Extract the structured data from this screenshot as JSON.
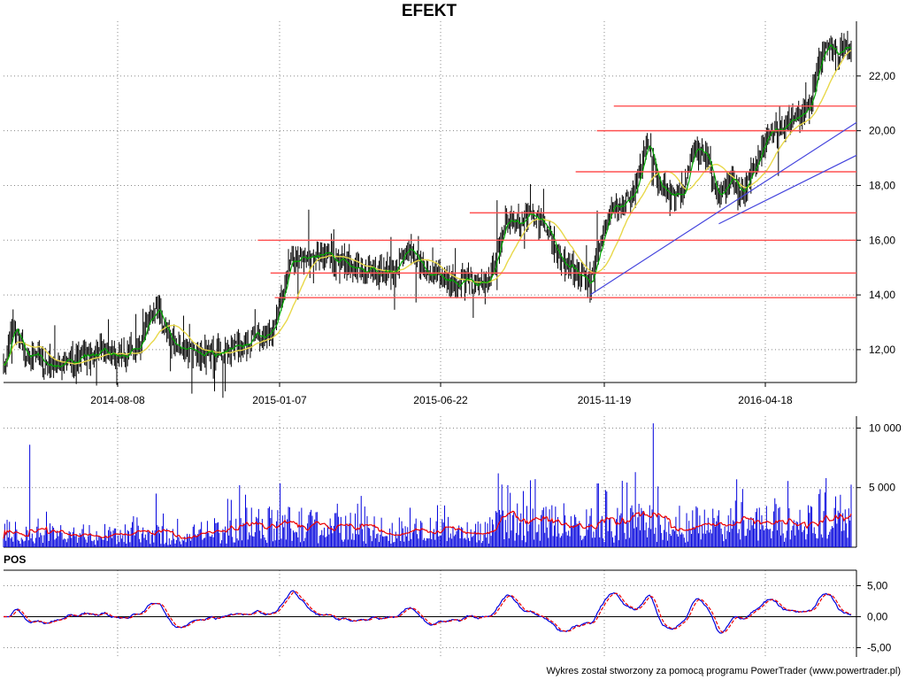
{
  "title": "EFEKT",
  "footer": "Wykres został stworzony za pomocą programu PowerTrader (www.powertrader.pl)",
  "colors": {
    "candle": "#000000",
    "ma_short": "#00aa00",
    "ma_long": "#e8d84a",
    "hline": "#ff5050",
    "trendline": "#4444dd",
    "volume": "#0000dd",
    "volume_ma": "#ee0000",
    "pos_line": "#0000dd",
    "pos_signal": "#ee0000",
    "grid": "#888888"
  },
  "chart_data": [
    {
      "type": "candlestick",
      "name": "price",
      "title": "EFEKT",
      "x_tick_labels": [
        "2014-08-08",
        "2015-01-07",
        "2015-06-22",
        "2015-11-19",
        "2016-04-18"
      ],
      "y_tick_labels": [
        "12,00",
        "14,00",
        "16,00",
        "18,00",
        "20,00",
        "22,00"
      ],
      "ylim": [
        10.8,
        24.0
      ],
      "grid": true,
      "anchors": [
        {
          "i": 0,
          "v": 11.2
        },
        {
          "i": 8,
          "v": 12.9
        },
        {
          "i": 20,
          "v": 11.8
        },
        {
          "i": 40,
          "v": 11.4
        },
        {
          "i": 60,
          "v": 11.6
        },
        {
          "i": 80,
          "v": 11.9
        },
        {
          "i": 100,
          "v": 11.7
        },
        {
          "i": 115,
          "v": 12.3
        },
        {
          "i": 128,
          "v": 13.6
        },
        {
          "i": 138,
          "v": 12.4
        },
        {
          "i": 150,
          "v": 12.0
        },
        {
          "i": 170,
          "v": 11.8
        },
        {
          "i": 190,
          "v": 12.0
        },
        {
          "i": 210,
          "v": 12.5
        },
        {
          "i": 225,
          "v": 12.7
        },
        {
          "i": 232,
          "v": 13.8
        },
        {
          "i": 240,
          "v": 15.2
        },
        {
          "i": 255,
          "v": 15.4
        },
        {
          "i": 270,
          "v": 15.5
        },
        {
          "i": 285,
          "v": 15.2
        },
        {
          "i": 300,
          "v": 14.9
        },
        {
          "i": 325,
          "v": 14.8
        },
        {
          "i": 340,
          "v": 15.7
        },
        {
          "i": 355,
          "v": 14.9
        },
        {
          "i": 370,
          "v": 14.6
        },
        {
          "i": 385,
          "v": 14.5
        },
        {
          "i": 400,
          "v": 14.4
        },
        {
          "i": 410,
          "v": 15.0
        },
        {
          "i": 420,
          "v": 16.7
        },
        {
          "i": 430,
          "v": 16.6
        },
        {
          "i": 440,
          "v": 16.9
        },
        {
          "i": 455,
          "v": 16.6
        },
        {
          "i": 465,
          "v": 15.4
        },
        {
          "i": 480,
          "v": 14.8
        },
        {
          "i": 492,
          "v": 14.3
        },
        {
          "i": 500,
          "v": 15.8
        },
        {
          "i": 510,
          "v": 17.2
        },
        {
          "i": 520,
          "v": 17.3
        },
        {
          "i": 530,
          "v": 17.9
        },
        {
          "i": 540,
          "v": 19.6
        },
        {
          "i": 548,
          "v": 18.3
        },
        {
          "i": 560,
          "v": 17.5
        },
        {
          "i": 570,
          "v": 17.6
        },
        {
          "i": 580,
          "v": 19.6
        },
        {
          "i": 590,
          "v": 19.0
        },
        {
          "i": 600,
          "v": 17.4
        },
        {
          "i": 610,
          "v": 18.2
        },
        {
          "i": 618,
          "v": 17.6
        },
        {
          "i": 630,
          "v": 18.6
        },
        {
          "i": 640,
          "v": 19.8
        },
        {
          "i": 660,
          "v": 20.3
        },
        {
          "i": 675,
          "v": 20.8
        },
        {
          "i": 685,
          "v": 22.6
        },
        {
          "i": 692,
          "v": 23.2
        },
        {
          "i": 700,
          "v": 22.8
        },
        {
          "i": 708,
          "v": 23.0
        }
      ],
      "horizontal_levels": [
        {
          "y": 20.9,
          "x_from": 0.72
        },
        {
          "y": 20.0,
          "x_from": 0.7
        },
        {
          "y": 18.5,
          "x_from": 0.675
        },
        {
          "y": 17.0,
          "x_from": 0.55
        },
        {
          "y": 16.0,
          "x_from": 0.3
        },
        {
          "y": 14.8,
          "x_from": 0.315
        },
        {
          "y": 13.9,
          "x_from": 0.32
        }
      ],
      "trendlines": [
        {
          "from": {
            "i": 492,
            "v": 14.0
          },
          "to": {
            "i": 708,
            "v": 20.3
          }
        },
        {
          "from": {
            "i": 600,
            "v": 16.6
          },
          "to": {
            "i": 708,
            "v": 19.1
          }
        }
      ]
    },
    {
      "type": "bar",
      "name": "volume",
      "y_tick_labels": [
        "5 000",
        "10 000"
      ],
      "ylim": [
        0,
        11000
      ],
      "grid": true,
      "spikes": [
        {
          "i": 22,
          "v": 8600
        },
        {
          "i": 128,
          "v": 4500
        },
        {
          "i": 198,
          "v": 5200
        },
        {
          "i": 415,
          "v": 6200
        },
        {
          "i": 505,
          "v": 4800
        },
        {
          "i": 530,
          "v": 6300
        },
        {
          "i": 545,
          "v": 10400
        },
        {
          "i": 549,
          "v": 5100
        },
        {
          "i": 690,
          "v": 5800
        },
        {
          "i": 702,
          "v": 4400
        }
      ],
      "level": [
        {
          "i": 0,
          "v": 1100
        },
        {
          "i": 150,
          "v": 900
        },
        {
          "i": 230,
          "v": 1800
        },
        {
          "i": 300,
          "v": 1400
        },
        {
          "i": 400,
          "v": 1100
        },
        {
          "i": 420,
          "v": 2000
        },
        {
          "i": 500,
          "v": 1800
        },
        {
          "i": 560,
          "v": 1900
        },
        {
          "i": 640,
          "v": 2000
        },
        {
          "i": 700,
          "v": 2600
        },
        {
          "i": 710,
          "v": 2200
        }
      ]
    },
    {
      "type": "line",
      "name": "oscillator",
      "label": "POS",
      "y_tick_labels": [
        "-5,00",
        "0,00",
        "5,00"
      ],
      "ylim": [
        -6.5,
        7.5
      ],
      "grid": true,
      "zero_line": true
    }
  ]
}
